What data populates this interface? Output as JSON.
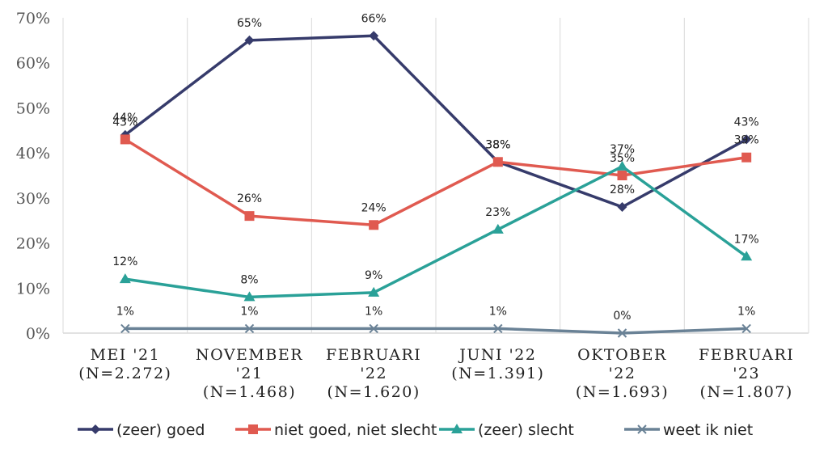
{
  "chart_data": {
    "type": "line",
    "categories": [
      [
        "MEI '21",
        "(N=2.272)"
      ],
      [
        "NOVEMBER",
        "'21",
        "(N=1.468)"
      ],
      [
        "FEBRUARI",
        "'22",
        "(N=1.620)"
      ],
      [
        "JUNI '22",
        "(N=1.391)"
      ],
      [
        "OKTOBER",
        "'22",
        "(N=1.693)"
      ],
      [
        "FEBRUARI",
        "'23",
        "(N=1.807)"
      ]
    ],
    "ylim": [
      0,
      70
    ],
    "yticks": [
      "0%",
      "10%",
      "20%",
      "30%",
      "40%",
      "50%",
      "60%",
      "70%"
    ],
    "grid": "vertical",
    "legend": "bottom",
    "series": [
      {
        "name": "(zeer) goed",
        "values": [
          44,
          65,
          66,
          38,
          28,
          43
        ],
        "labels": [
          "44%",
          "65%",
          "66%",
          "38%",
          "28%",
          "43%"
        ],
        "color": "#363b6b",
        "marker": "diamond"
      },
      {
        "name": "niet goed, niet slecht",
        "values": [
          43,
          26,
          24,
          38,
          35,
          39
        ],
        "labels": [
          "43%",
          "26%",
          "24%",
          "38%",
          "35%",
          "39%"
        ],
        "color": "#e05a50",
        "marker": "square"
      },
      {
        "name": "(zeer) slecht",
        "values": [
          12,
          8,
          9,
          23,
          37,
          17
        ],
        "labels": [
          "12%",
          "8%",
          "9%",
          "23%",
          "37%",
          "17%"
        ],
        "color": "#2aa198",
        "marker": "triangle"
      },
      {
        "name": "weet ik niet",
        "values": [
          1,
          1,
          1,
          1,
          0,
          1
        ],
        "labels": [
          "1%",
          "1%",
          "1%",
          "1%",
          "0%",
          "1%"
        ],
        "color": "#6a8296",
        "marker": "x"
      }
    ]
  }
}
